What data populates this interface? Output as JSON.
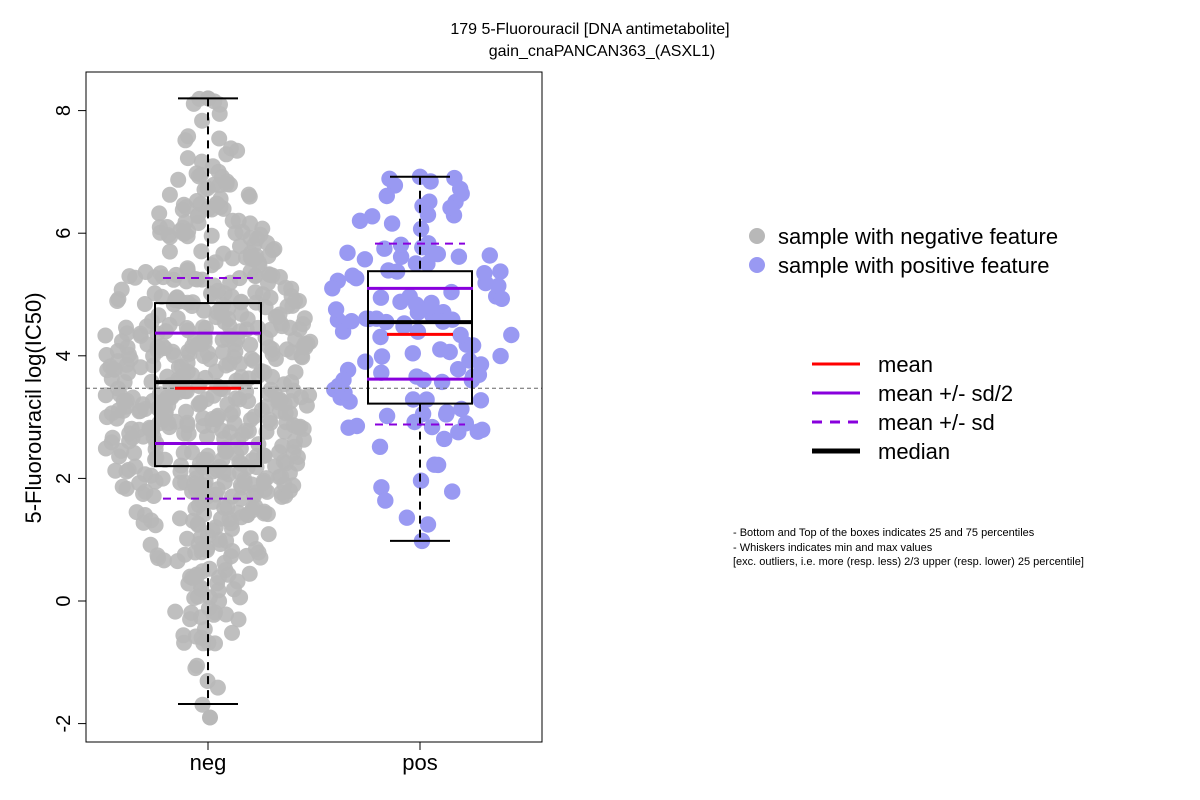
{
  "chart_data": {
    "type": "scatter",
    "title": "179 5-Fluorouracil [DNA antimetabolite]",
    "subtitle": "gain_cnaPANCAN363_(ASXL1)",
    "ylabel": "5-Fluorouracil log(IC50)",
    "xlabel": "",
    "categories": [
      "neg",
      "pos"
    ],
    "ylim": [
      -2.3,
      8.6
    ],
    "yticks": [
      -2,
      0,
      2,
      4,
      6,
      8
    ],
    "ytick_labels": [
      "-2",
      "0",
      "2",
      "4",
      "6",
      "8"
    ],
    "reference_line_y": 3.47,
    "grid": false,
    "legend_position": "right",
    "series": [
      {
        "name": "neg",
        "color": "#b8b8b8",
        "n_points": 600,
        "box": {
          "q1": 2.2,
          "median": 3.57,
          "q3": 4.86,
          "whisker_low": -1.68,
          "whisker_high": 8.2
        },
        "mean": 3.47,
        "mean_minus_half_sd": 2.57,
        "mean_plus_half_sd": 4.37,
        "mean_minus_sd": 1.67,
        "mean_plus_sd": 5.27,
        "min": -1.9,
        "max": 8.2
      },
      {
        "name": "pos",
        "color": "#9999f2",
        "n_points": 120,
        "box": {
          "q1": 3.22,
          "median": 4.55,
          "q3": 5.38,
          "whisker_low": 0.98,
          "whisker_high": 6.92
        },
        "mean": 4.35,
        "mean_minus_half_sd": 3.62,
        "mean_plus_half_sd": 5.1,
        "mean_minus_sd": 2.88,
        "mean_plus_sd": 5.83,
        "min": 0.98,
        "max": 6.92
      }
    ]
  },
  "legend": {
    "points": [
      {
        "label": "sample with negative feature",
        "color": "#b8b8b8"
      },
      {
        "label": "sample with positive feature",
        "color": "#9999f2"
      }
    ],
    "lines": [
      {
        "label": "mean",
        "color": "#ff0000",
        "style": "solid"
      },
      {
        "label": "mean +/- sd/2",
        "color": "#8800dd",
        "style": "solid"
      },
      {
        "label": "mean +/- sd",
        "color": "#8800dd",
        "style": "dashed"
      },
      {
        "label": "median",
        "color": "#000000",
        "style": "solid-thick"
      }
    ]
  },
  "notes": [
    "- Bottom and Top of the boxes indicates 25 and 75 percentiles",
    "- Whiskers indicates min and max values",
    "[exc. outliers, i.e. more (resp. less) 2/3 upper (resp. lower) 25 percentile]"
  ]
}
